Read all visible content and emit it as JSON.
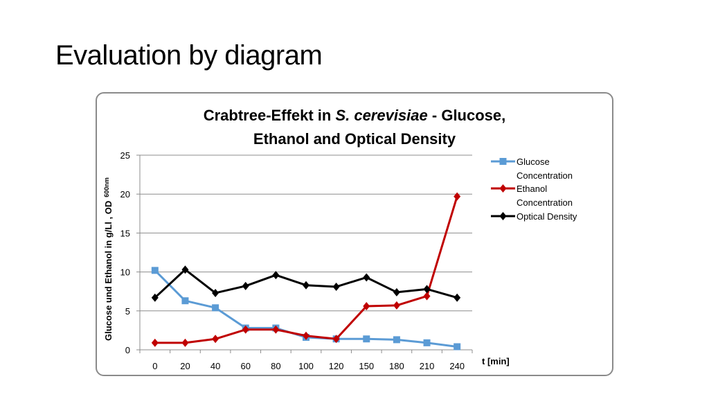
{
  "slide": {
    "title": "Evaluation by diagram"
  },
  "chart_data": {
    "type": "line",
    "title_parts": [
      "Crabtree-Effekt in ",
      "S. cerevisiae",
      " - Glucose,",
      "Ethanol and Optical Density"
    ],
    "xlabel": "t [min]",
    "ylabel": "Glucose und Ethanol in g/Ll , OD",
    "ylabel_sub": "600nm",
    "categories": [
      "0",
      "20",
      "40",
      "60",
      "80",
      "100",
      "120",
      "150",
      "180",
      "210",
      "240"
    ],
    "ylim": [
      0,
      25
    ],
    "yticks": [
      0,
      5,
      10,
      15,
      20,
      25
    ],
    "grid": true,
    "legend_position": "right",
    "series": [
      {
        "name": "Glucose Concentration",
        "legend_lines": [
          "Glucose",
          "Concentration"
        ],
        "color": "#5b9bd5",
        "marker": "square",
        "values": [
          10.2,
          6.3,
          5.4,
          2.8,
          2.8,
          1.6,
          1.4,
          1.4,
          1.3,
          0.9,
          0.4
        ]
      },
      {
        "name": "Ethanol Concentration",
        "legend_lines": [
          "Ethanol",
          "Concentration"
        ],
        "color": "#c00000",
        "marker": "diamond",
        "values": [
          0.9,
          0.9,
          1.4,
          2.6,
          2.6,
          1.8,
          1.4,
          5.6,
          5.7,
          6.9,
          19.7
        ]
      },
      {
        "name": "Optical Density",
        "legend_lines": [
          "Optical Density"
        ],
        "color": "#000000",
        "marker": "diamond",
        "values": [
          6.7,
          10.3,
          7.3,
          8.2,
          9.6,
          8.3,
          8.1,
          9.3,
          7.4,
          7.8,
          6.7
        ]
      }
    ]
  }
}
